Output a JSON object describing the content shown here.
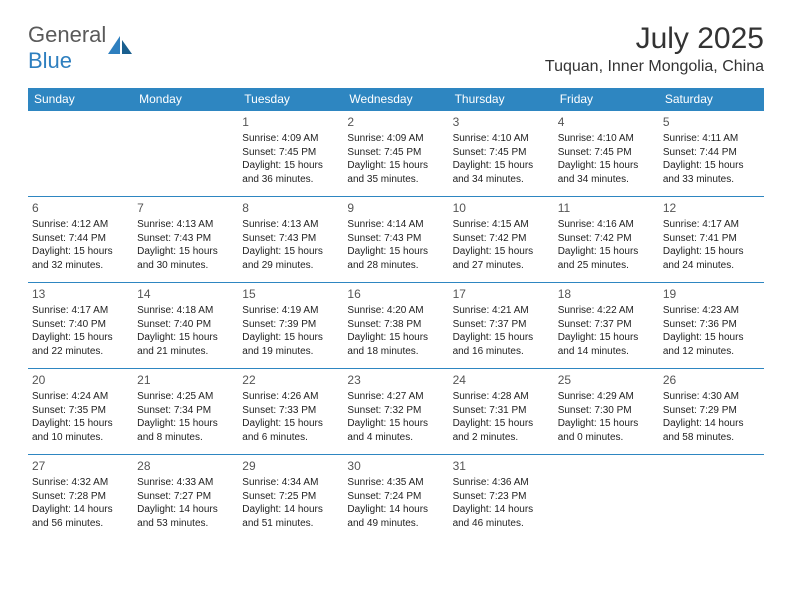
{
  "logo": {
    "word1": "General",
    "word2": "Blue"
  },
  "title": {
    "month": "July 2025",
    "location": "Tuquan, Inner Mongolia, China"
  },
  "colors": {
    "header_bg": "#2e86c1",
    "header_text": "#ffffff",
    "border": "#2e86c1",
    "text": "#222222",
    "logo_gray": "#5a5a5a",
    "logo_blue": "#2e7fbf"
  },
  "day_headers": [
    "Sunday",
    "Monday",
    "Tuesday",
    "Wednesday",
    "Thursday",
    "Friday",
    "Saturday"
  ],
  "weeks": [
    [
      null,
      null,
      {
        "n": "1",
        "l1": "Sunrise: 4:09 AM",
        "l2": "Sunset: 7:45 PM",
        "l3": "Daylight: 15 hours",
        "l4": "and 36 minutes."
      },
      {
        "n": "2",
        "l1": "Sunrise: 4:09 AM",
        "l2": "Sunset: 7:45 PM",
        "l3": "Daylight: 15 hours",
        "l4": "and 35 minutes."
      },
      {
        "n": "3",
        "l1": "Sunrise: 4:10 AM",
        "l2": "Sunset: 7:45 PM",
        "l3": "Daylight: 15 hours",
        "l4": "and 34 minutes."
      },
      {
        "n": "4",
        "l1": "Sunrise: 4:10 AM",
        "l2": "Sunset: 7:45 PM",
        "l3": "Daylight: 15 hours",
        "l4": "and 34 minutes."
      },
      {
        "n": "5",
        "l1": "Sunrise: 4:11 AM",
        "l2": "Sunset: 7:44 PM",
        "l3": "Daylight: 15 hours",
        "l4": "and 33 minutes."
      }
    ],
    [
      {
        "n": "6",
        "l1": "Sunrise: 4:12 AM",
        "l2": "Sunset: 7:44 PM",
        "l3": "Daylight: 15 hours",
        "l4": "and 32 minutes."
      },
      {
        "n": "7",
        "l1": "Sunrise: 4:13 AM",
        "l2": "Sunset: 7:43 PM",
        "l3": "Daylight: 15 hours",
        "l4": "and 30 minutes."
      },
      {
        "n": "8",
        "l1": "Sunrise: 4:13 AM",
        "l2": "Sunset: 7:43 PM",
        "l3": "Daylight: 15 hours",
        "l4": "and 29 minutes."
      },
      {
        "n": "9",
        "l1": "Sunrise: 4:14 AM",
        "l2": "Sunset: 7:43 PM",
        "l3": "Daylight: 15 hours",
        "l4": "and 28 minutes."
      },
      {
        "n": "10",
        "l1": "Sunrise: 4:15 AM",
        "l2": "Sunset: 7:42 PM",
        "l3": "Daylight: 15 hours",
        "l4": "and 27 minutes."
      },
      {
        "n": "11",
        "l1": "Sunrise: 4:16 AM",
        "l2": "Sunset: 7:42 PM",
        "l3": "Daylight: 15 hours",
        "l4": "and 25 minutes."
      },
      {
        "n": "12",
        "l1": "Sunrise: 4:17 AM",
        "l2": "Sunset: 7:41 PM",
        "l3": "Daylight: 15 hours",
        "l4": "and 24 minutes."
      }
    ],
    [
      {
        "n": "13",
        "l1": "Sunrise: 4:17 AM",
        "l2": "Sunset: 7:40 PM",
        "l3": "Daylight: 15 hours",
        "l4": "and 22 minutes."
      },
      {
        "n": "14",
        "l1": "Sunrise: 4:18 AM",
        "l2": "Sunset: 7:40 PM",
        "l3": "Daylight: 15 hours",
        "l4": "and 21 minutes."
      },
      {
        "n": "15",
        "l1": "Sunrise: 4:19 AM",
        "l2": "Sunset: 7:39 PM",
        "l3": "Daylight: 15 hours",
        "l4": "and 19 minutes."
      },
      {
        "n": "16",
        "l1": "Sunrise: 4:20 AM",
        "l2": "Sunset: 7:38 PM",
        "l3": "Daylight: 15 hours",
        "l4": "and 18 minutes."
      },
      {
        "n": "17",
        "l1": "Sunrise: 4:21 AM",
        "l2": "Sunset: 7:37 PM",
        "l3": "Daylight: 15 hours",
        "l4": "and 16 minutes."
      },
      {
        "n": "18",
        "l1": "Sunrise: 4:22 AM",
        "l2": "Sunset: 7:37 PM",
        "l3": "Daylight: 15 hours",
        "l4": "and 14 minutes."
      },
      {
        "n": "19",
        "l1": "Sunrise: 4:23 AM",
        "l2": "Sunset: 7:36 PM",
        "l3": "Daylight: 15 hours",
        "l4": "and 12 minutes."
      }
    ],
    [
      {
        "n": "20",
        "l1": "Sunrise: 4:24 AM",
        "l2": "Sunset: 7:35 PM",
        "l3": "Daylight: 15 hours",
        "l4": "and 10 minutes."
      },
      {
        "n": "21",
        "l1": "Sunrise: 4:25 AM",
        "l2": "Sunset: 7:34 PM",
        "l3": "Daylight: 15 hours",
        "l4": "and 8 minutes."
      },
      {
        "n": "22",
        "l1": "Sunrise: 4:26 AM",
        "l2": "Sunset: 7:33 PM",
        "l3": "Daylight: 15 hours",
        "l4": "and 6 minutes."
      },
      {
        "n": "23",
        "l1": "Sunrise: 4:27 AM",
        "l2": "Sunset: 7:32 PM",
        "l3": "Daylight: 15 hours",
        "l4": "and 4 minutes."
      },
      {
        "n": "24",
        "l1": "Sunrise: 4:28 AM",
        "l2": "Sunset: 7:31 PM",
        "l3": "Daylight: 15 hours",
        "l4": "and 2 minutes."
      },
      {
        "n": "25",
        "l1": "Sunrise: 4:29 AM",
        "l2": "Sunset: 7:30 PM",
        "l3": "Daylight: 15 hours",
        "l4": "and 0 minutes."
      },
      {
        "n": "26",
        "l1": "Sunrise: 4:30 AM",
        "l2": "Sunset: 7:29 PM",
        "l3": "Daylight: 14 hours",
        "l4": "and 58 minutes."
      }
    ],
    [
      {
        "n": "27",
        "l1": "Sunrise: 4:32 AM",
        "l2": "Sunset: 7:28 PM",
        "l3": "Daylight: 14 hours",
        "l4": "and 56 minutes."
      },
      {
        "n": "28",
        "l1": "Sunrise: 4:33 AM",
        "l2": "Sunset: 7:27 PM",
        "l3": "Daylight: 14 hours",
        "l4": "and 53 minutes."
      },
      {
        "n": "29",
        "l1": "Sunrise: 4:34 AM",
        "l2": "Sunset: 7:25 PM",
        "l3": "Daylight: 14 hours",
        "l4": "and 51 minutes."
      },
      {
        "n": "30",
        "l1": "Sunrise: 4:35 AM",
        "l2": "Sunset: 7:24 PM",
        "l3": "Daylight: 14 hours",
        "l4": "and 49 minutes."
      },
      {
        "n": "31",
        "l1": "Sunrise: 4:36 AM",
        "l2": "Sunset: 7:23 PM",
        "l3": "Daylight: 14 hours",
        "l4": "and 46 minutes."
      },
      null,
      null
    ]
  ]
}
